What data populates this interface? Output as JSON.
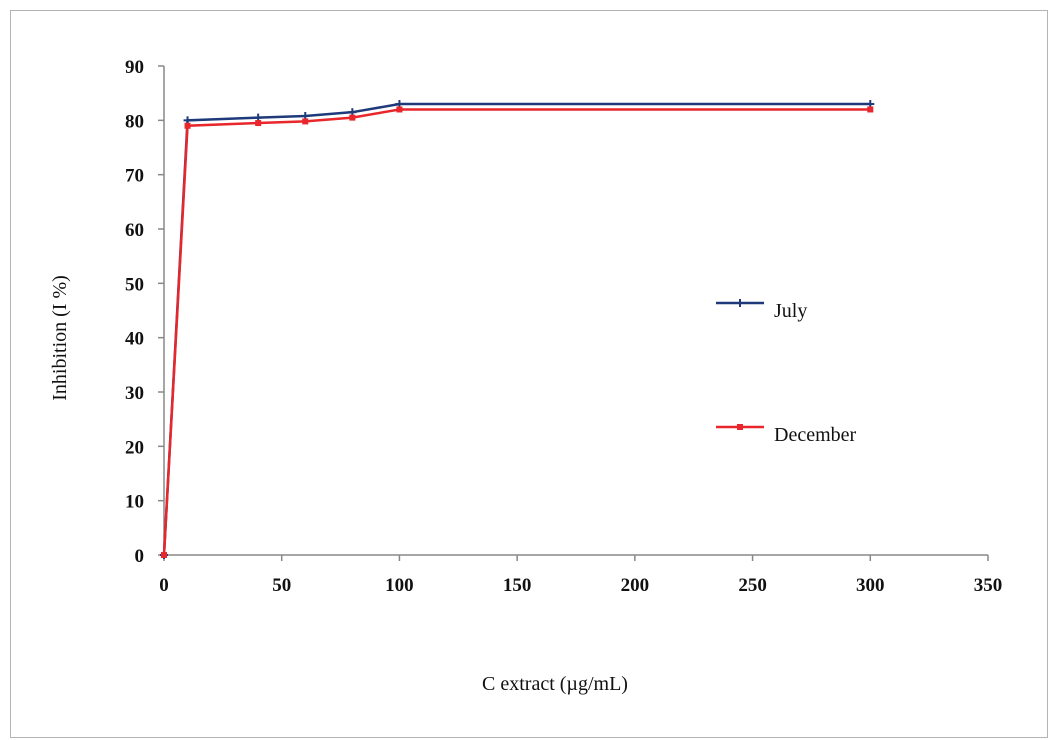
{
  "chart_data": {
    "type": "line",
    "title": "",
    "xlabel": "C extract (µg/mL)",
    "ylabel": "Inhibition (I %)",
    "xlim": [
      0,
      350
    ],
    "ylim": [
      0,
      90
    ],
    "x_ticks": [
      0,
      50,
      100,
      150,
      200,
      250,
      300,
      350
    ],
    "y_ticks": [
      0,
      10,
      20,
      30,
      40,
      50,
      60,
      70,
      80,
      90
    ],
    "grid": false,
    "legend_position": "right",
    "series": [
      {
        "name": "July",
        "color": "#1f3a7a",
        "marker": "plus",
        "x": [
          0,
          10,
          40,
          60,
          80,
          100,
          300
        ],
        "y": [
          0,
          80,
          80.5,
          80.8,
          81.5,
          83,
          83
        ]
      },
      {
        "name": "December",
        "color": "#e8262b",
        "marker": "square",
        "x": [
          0,
          10,
          40,
          60,
          80,
          100,
          300
        ],
        "y": [
          0,
          79,
          79.5,
          79.8,
          80.5,
          82,
          82
        ]
      }
    ]
  }
}
